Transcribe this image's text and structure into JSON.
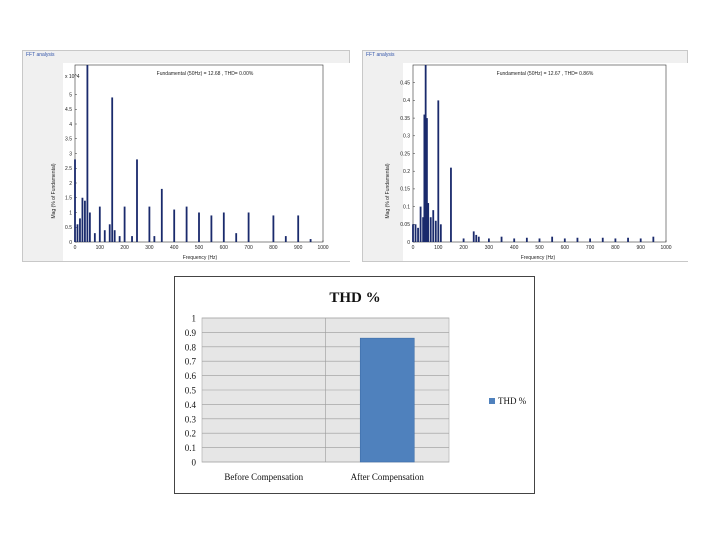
{
  "fft_panels": [
    {
      "window_title": "FFT analysis",
      "plot_title": "Fundamental (50Hz) = 12.68 , THD= 0.00%",
      "exponent_label": "x 10^4",
      "xlabel": "Frequency (Hz)",
      "ylabel": "Mag (% of Fundamental)"
    },
    {
      "window_title": "FFT analysis",
      "plot_title": "Fundamental (50Hz) = 12.67 , THD= 0.86%",
      "exponent_label": "",
      "xlabel": "Frequency (Hz)",
      "ylabel": "Mag (% of Fundamental)"
    }
  ],
  "chart_data": [
    {
      "type": "bar",
      "title": "",
      "xlabel": "Frequency (Hz)",
      "ylabel": "Mag (% of Fundamental)",
      "xlim": [
        0,
        1000
      ],
      "ylim": [
        0,
        6
      ],
      "xticks": [
        0,
        100,
        200,
        300,
        400,
        500,
        600,
        700,
        800,
        900,
        1000
      ],
      "yticks": [
        0,
        0.5,
        1,
        1.5,
        2,
        2.5,
        3,
        3.5,
        4,
        4.5,
        5
      ],
      "x": [
        0,
        10,
        20,
        30,
        40,
        50,
        60,
        80,
        100,
        120,
        140,
        150,
        160,
        180,
        200,
        230,
        250,
        300,
        320,
        350,
        400,
        450,
        500,
        550,
        600,
        650,
        700,
        800,
        850,
        900,
        950
      ],
      "values": [
        2.8,
        0.6,
        0.8,
        1.5,
        1.4,
        6.0,
        1.0,
        0.3,
        1.2,
        0.4,
        0.6,
        4.9,
        0.4,
        0.2,
        1.2,
        0.2,
        2.8,
        1.2,
        0.2,
        1.8,
        1.1,
        1.2,
        1.0,
        0.9,
        1.0,
        0.3,
        1.0,
        0.9,
        0.2,
        0.9,
        0.1
      ]
    },
    {
      "type": "bar",
      "title": "",
      "xlabel": "Frequency (Hz)",
      "ylabel": "Mag (% of Fundamental)",
      "xlim": [
        0,
        1000
      ],
      "ylim": [
        0,
        0.5
      ],
      "xticks": [
        0,
        100,
        200,
        300,
        400,
        500,
        600,
        700,
        800,
        900,
        1000
      ],
      "yticks": [
        0,
        0.05,
        0.1,
        0.15,
        0.2,
        0.25,
        0.3,
        0.35,
        0.4,
        0.45
      ],
      "x": [
        0,
        10,
        20,
        30,
        40,
        45,
        50,
        55,
        60,
        70,
        80,
        90,
        100,
        110,
        150,
        200,
        240,
        250,
        260,
        300,
        350,
        400,
        450,
        500,
        550,
        600,
        650,
        700,
        750,
        800,
        850,
        900,
        950
      ],
      "values": [
        0.05,
        0.05,
        0.04,
        0.1,
        0.07,
        0.36,
        0.5,
        0.35,
        0.11,
        0.07,
        0.09,
        0.06,
        0.4,
        0.05,
        0.21,
        0.01,
        0.03,
        0.02,
        0.015,
        0.01,
        0.015,
        0.01,
        0.012,
        0.01,
        0.015,
        0.01,
        0.012,
        0.01,
        0.012,
        0.01,
        0.012,
        0.01,
        0.015
      ]
    },
    {
      "type": "bar",
      "title": "THD %",
      "xlabel": "",
      "ylabel": "",
      "categories": [
        "Before Compensation",
        "After Compensation"
      ],
      "series": [
        {
          "name": "THD %",
          "values": [
            0,
            0.86
          ]
        }
      ],
      "ylim": [
        0,
        1
      ],
      "yticks": [
        0,
        0.1,
        0.2,
        0.3,
        0.4,
        0.5,
        0.6,
        0.7,
        0.8,
        0.9,
        1
      ],
      "bar_color": "#4f81bd",
      "plot_bg": "#e6e6e6"
    }
  ]
}
